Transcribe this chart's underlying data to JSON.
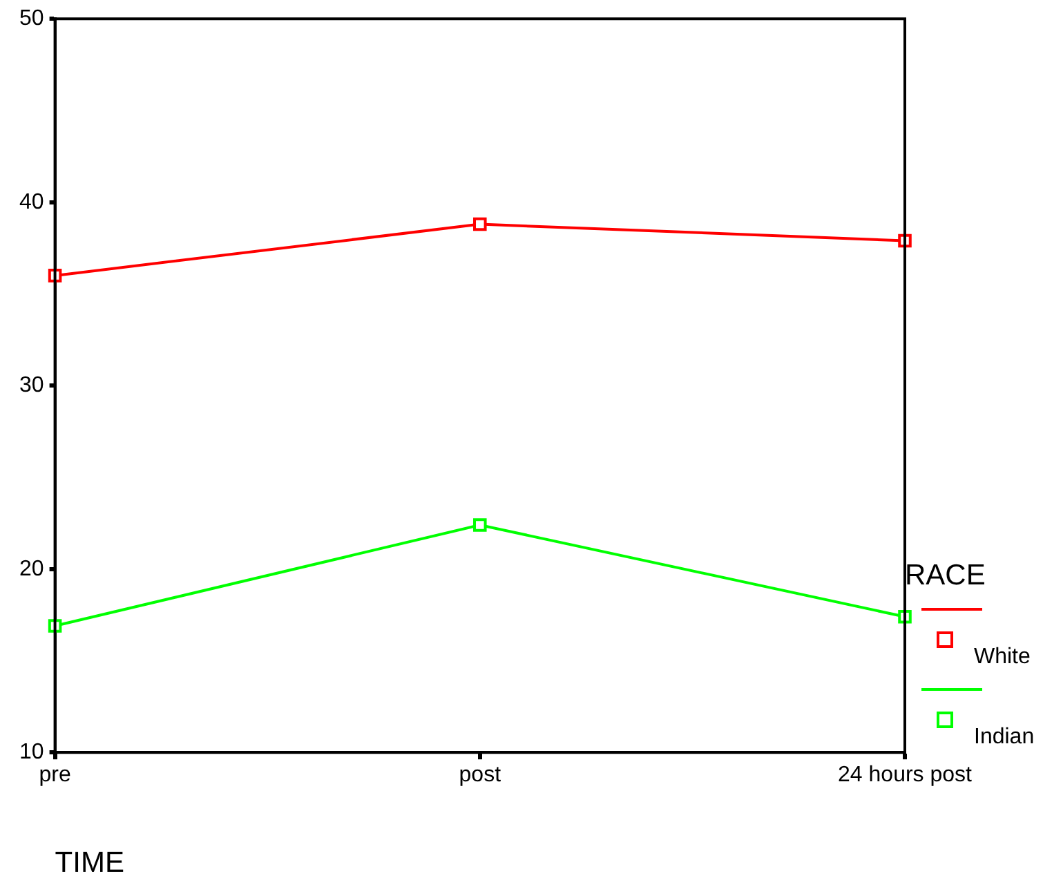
{
  "chart_data": {
    "type": "line",
    "xlabel": "TIME",
    "legend_title": "RACE",
    "legend": "right",
    "marker": "square",
    "line_style": "solid",
    "categories": [
      "pre",
      "post",
      "24 hours post"
    ],
    "ylim": [
      10,
      50
    ],
    "yticks": [
      10,
      20,
      30,
      40,
      50
    ],
    "series": [
      {
        "name": "White",
        "color": "#ff0000",
        "values": [
          36,
          38.8,
          37.9
        ]
      },
      {
        "name": "Indian",
        "color": "#00ff00",
        "values": [
          16.9,
          22.4,
          17.4
        ]
      }
    ]
  }
}
